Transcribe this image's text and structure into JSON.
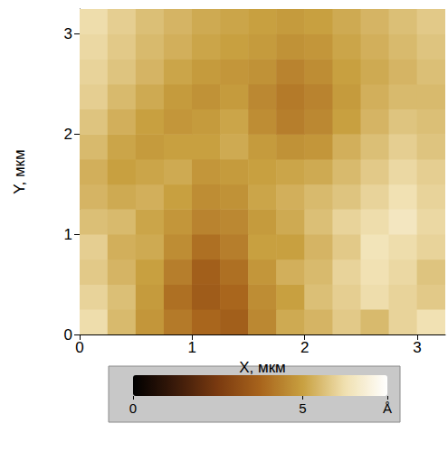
{
  "chart_data": {
    "type": "heatmap",
    "x_label": "X, мкм",
    "y_label": "Y, мкм",
    "xlim": [
      0,
      3.25
    ],
    "ylim": [
      0,
      3.25
    ],
    "xticks": [
      0,
      1,
      2,
      3
    ],
    "yticks": [
      0,
      1,
      2,
      3
    ],
    "grid": false,
    "x": [
      0.125,
      0.375,
      0.625,
      0.875,
      1.125,
      1.375,
      1.625,
      1.875,
      2.125,
      2.375,
      2.625,
      2.875,
      3.125
    ],
    "y": [
      0.125,
      0.375,
      0.625,
      0.875,
      1.125,
      1.375,
      1.625,
      1.875,
      2.125,
      2.375,
      2.625,
      2.875,
      3.125
    ],
    "z": [
      [
        6.2,
        5.5,
        4.8,
        4.2,
        3.8,
        3.6,
        4.5,
        5.2,
        5.4,
        5.8,
        5.5,
        6.0,
        6.3
      ],
      [
        6.0,
        5.6,
        4.9,
        4.0,
        3.5,
        3.8,
        4.6,
        5.0,
        5.6,
        5.9,
        6.2,
        6.0,
        5.8
      ],
      [
        5.8,
        5.4,
        5.0,
        4.3,
        3.6,
        4.0,
        4.8,
        5.3,
        5.5,
        6.0,
        6.3,
        6.1,
        5.7
      ],
      [
        5.9,
        5.3,
        5.2,
        4.6,
        4.0,
        4.3,
        5.0,
        5.0,
        5.4,
        5.8,
        6.4,
        6.2,
        6.0
      ],
      [
        5.6,
        5.5,
        5.1,
        4.8,
        4.4,
        4.5,
        4.9,
        5.2,
        5.6,
        6.0,
        6.2,
        6.5,
        6.1
      ],
      [
        5.4,
        5.2,
        5.3,
        5.0,
        4.6,
        4.7,
        5.1,
        5.3,
        5.5,
        5.7,
        6.0,
        6.3,
        6.0
      ],
      [
        5.3,
        5.0,
        5.1,
        5.2,
        4.8,
        4.9,
        5.0,
        5.1,
        5.2,
        5.5,
        5.8,
        6.1,
        5.9
      ],
      [
        5.5,
        5.1,
        4.9,
        5.0,
        5.0,
        5.2,
        4.9,
        4.7,
        4.8,
        5.3,
        5.6,
        5.9,
        5.7
      ],
      [
        5.7,
        5.3,
        5.0,
        4.8,
        4.9,
        5.1,
        4.6,
        4.3,
        4.5,
        5.0,
        5.4,
        5.7,
        5.6
      ],
      [
        5.9,
        5.5,
        5.2,
        4.9,
        4.7,
        4.9,
        4.5,
        4.2,
        4.4,
        4.9,
        5.3,
        5.5,
        5.5
      ],
      [
        6.0,
        5.7,
        5.4,
        5.1,
        4.9,
        4.8,
        4.7,
        4.4,
        4.6,
        5.0,
        5.2,
        5.4,
        5.6
      ],
      [
        6.1,
        5.8,
        5.5,
        5.3,
        5.1,
        5.0,
        4.9,
        4.7,
        4.8,
        5.1,
        5.3,
        5.5,
        5.7
      ],
      [
        6.2,
        5.9,
        5.6,
        5.4,
        5.2,
        5.1,
        5.0,
        4.9,
        5.0,
        5.2,
        5.4,
        5.6,
        5.8
      ]
    ],
    "colorbar": {
      "range": [
        0,
        7.5
      ],
      "ticks": [
        0,
        5,
        {
          "value": 7.5,
          "label": "Å"
        }
      ],
      "colors": [
        "#000000",
        "#3a1a0a",
        "#7a3a10",
        "#a8641c",
        "#c8a040",
        "#f0e0b0",
        "#ffffff"
      ]
    }
  }
}
